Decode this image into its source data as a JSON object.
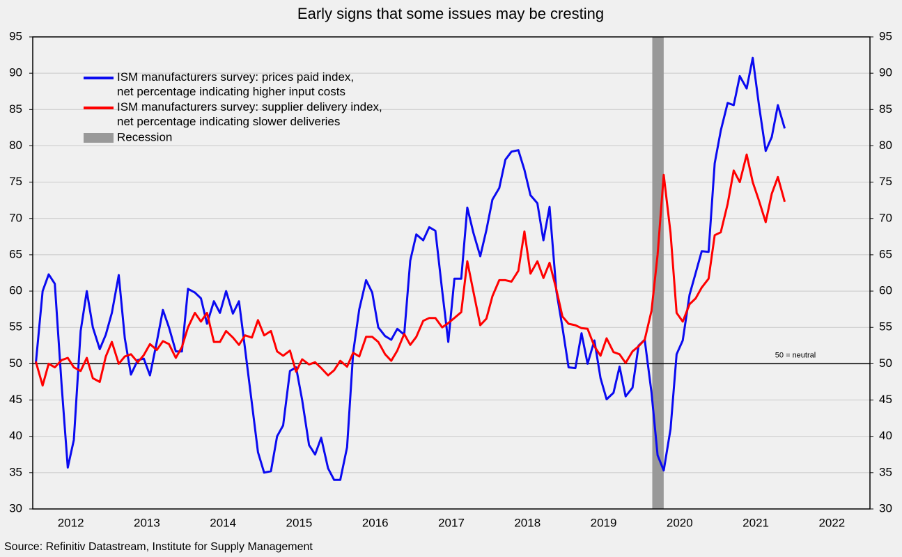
{
  "chart_data": {
    "type": "line",
    "title": "Early signs that some issues may be cresting",
    "source": "Source: Refinitiv Datastream, Institute for Supply Management",
    "xlim": [
      2012,
      2023
    ],
    "xticks": [
      {
        "value": 2012.5,
        "label": "2012"
      },
      {
        "value": 2013.5,
        "label": "2013"
      },
      {
        "value": 2014.5,
        "label": "2014"
      },
      {
        "value": 2015.5,
        "label": "2015"
      },
      {
        "value": 2016.5,
        "label": "2016"
      },
      {
        "value": 2017.5,
        "label": "2017"
      },
      {
        "value": 2018.5,
        "label": "2018"
      },
      {
        "value": 2019.5,
        "label": "2019"
      },
      {
        "value": 2020.5,
        "label": "2020"
      },
      {
        "value": 2021.5,
        "label": "2021"
      },
      {
        "value": 2022.5,
        "label": "2022"
      }
    ],
    "ylim": [
      30,
      95
    ],
    "yticks": [
      30,
      35,
      40,
      45,
      50,
      55,
      60,
      65,
      70,
      75,
      80,
      85,
      90,
      95
    ],
    "y2lim": [
      30,
      95
    ],
    "y2ticks": [
      30,
      35,
      40,
      45,
      50,
      55,
      60,
      65,
      70,
      75,
      80,
      85,
      90,
      95
    ],
    "grid": true,
    "legend": "upper left",
    "hline": {
      "value": 50,
      "label": "50 = neutral"
    },
    "shade": {
      "name": "Recession",
      "color": "#999999",
      "x": [
        2020.14,
        2020.29
      ]
    },
    "x": [
      2012.04,
      2012.13,
      2012.21,
      2012.29,
      2012.38,
      2012.46,
      2012.54,
      2012.63,
      2012.71,
      2012.79,
      2012.88,
      2012.96,
      2013.04,
      2013.13,
      2013.21,
      2013.29,
      2013.38,
      2013.46,
      2013.54,
      2013.63,
      2013.71,
      2013.79,
      2013.88,
      2013.96,
      2014.04,
      2014.13,
      2014.21,
      2014.29,
      2014.38,
      2014.46,
      2014.54,
      2014.63,
      2014.71,
      2014.79,
      2014.88,
      2014.96,
      2015.04,
      2015.13,
      2015.21,
      2015.29,
      2015.38,
      2015.46,
      2015.54,
      2015.63,
      2015.71,
      2015.79,
      2015.88,
      2015.96,
      2016.04,
      2016.13,
      2016.21,
      2016.29,
      2016.38,
      2016.46,
      2016.54,
      2016.63,
      2016.71,
      2016.79,
      2016.88,
      2016.96,
      2017.04,
      2017.13,
      2017.21,
      2017.29,
      2017.38,
      2017.46,
      2017.54,
      2017.63,
      2017.71,
      2017.79,
      2017.88,
      2017.96,
      2018.04,
      2018.13,
      2018.21,
      2018.29,
      2018.38,
      2018.46,
      2018.54,
      2018.63,
      2018.71,
      2018.79,
      2018.88,
      2018.96,
      2019.04,
      2019.13,
      2019.21,
      2019.29,
      2019.38,
      2019.46,
      2019.54,
      2019.63,
      2019.71,
      2019.79,
      2019.88,
      2019.96,
      2020.04,
      2020.13,
      2020.21,
      2020.29,
      2020.38,
      2020.46,
      2020.54,
      2020.63,
      2020.71,
      2020.79,
      2020.88,
      2020.96,
      2021.04,
      2021.13,
      2021.21,
      2021.29,
      2021.38,
      2021.46,
      2021.54,
      2021.63,
      2021.71,
      2021.79,
      2021.88
    ],
    "series": [
      {
        "name": "ISM manufacturers survey: prices paid index,\nnet percentage indicating higher input costs",
        "color": "#0a0af0",
        "values": [
          50,
          60,
          62.3,
          61,
          47,
          35.7,
          39.5,
          54.5,
          60,
          55,
          52,
          54,
          57,
          62.2,
          53.5,
          48.5,
          50.5,
          50.7,
          48.4,
          53,
          57.4,
          55,
          51.7,
          51.7,
          60.3,
          59.8,
          59,
          55.5,
          58.6,
          57,
          60,
          56.9,
          58.6,
          52,
          44.5,
          37.8,
          35,
          35.2,
          40,
          41.5,
          49,
          49.5,
          45,
          38.8,
          37.5,
          39.8,
          35.6,
          34,
          34,
          38.5,
          51.5,
          57.5,
          61.5,
          59.8,
          55,
          53.8,
          53.3,
          54.8,
          54,
          64.2,
          67.8,
          67,
          68.8,
          68.3,
          60,
          53,
          61.7,
          61.7,
          71.5,
          68,
          64.8,
          68.4,
          72.6,
          74.2,
          78.1,
          79.2,
          79.4,
          76.7,
          73.2,
          72.1,
          67,
          71.6,
          60,
          55,
          49.5,
          49.4,
          54.2,
          50,
          53.2,
          48,
          45.1,
          46,
          49.6,
          45.5,
          46.7,
          52.5,
          53.3,
          46,
          37.4,
          35.3,
          41,
          51.3,
          53.2,
          59.5,
          62.5,
          65.5,
          65.4,
          77.6,
          82.1,
          85.9,
          85.6,
          89.6,
          87.9,
          92.1,
          85.7,
          79.3,
          81.2,
          85.6,
          82.4
        ]
      },
      {
        "name": "ISM manufacturers survey: supplier delivery index,\nnet percentage indicating slower deliveries",
        "color": "#ff0000",
        "values": [
          50.3,
          47,
          50,
          49.5,
          50.5,
          50.8,
          49.5,
          49,
          50.8,
          48,
          47.5,
          51,
          53,
          50,
          51,
          51.3,
          50.2,
          51.2,
          52.7,
          51.9,
          53.1,
          52.7,
          50.8,
          52.3,
          55,
          57,
          55.8,
          57,
          53,
          53,
          54.5,
          53.6,
          52.6,
          53.9,
          53.6,
          56,
          53.9,
          54.5,
          51.7,
          51.1,
          51.8,
          48.9,
          50.6,
          49.9,
          50.2,
          49.4,
          48.4,
          49.1,
          50.4,
          49.6,
          51.5,
          51,
          53.7,
          53.7,
          53,
          51.3,
          50.4,
          51.8,
          54.1,
          52.6,
          53.7,
          55.9,
          56.3,
          56.3,
          55,
          55.6,
          56.3,
          57.1,
          64.1,
          59.9,
          55.3,
          56.2,
          59.3,
          61.5,
          61.5,
          61.3,
          62.8,
          68.2,
          62.4,
          64.1,
          61.8,
          63.9,
          60.2,
          56.5,
          55.5,
          55.3,
          54.9,
          54.8,
          52.4,
          51.1,
          53.5,
          51.6,
          51.3,
          50.1,
          51.7,
          52.4,
          53.3,
          57.3,
          65,
          76,
          68,
          57,
          55.8,
          58.2,
          59,
          60.5,
          61.7,
          67.7,
          68.1,
          72,
          76.6,
          75,
          78.8,
          75,
          72.5,
          69.5,
          73.4,
          75.7,
          72.3
        ]
      }
    ]
  }
}
